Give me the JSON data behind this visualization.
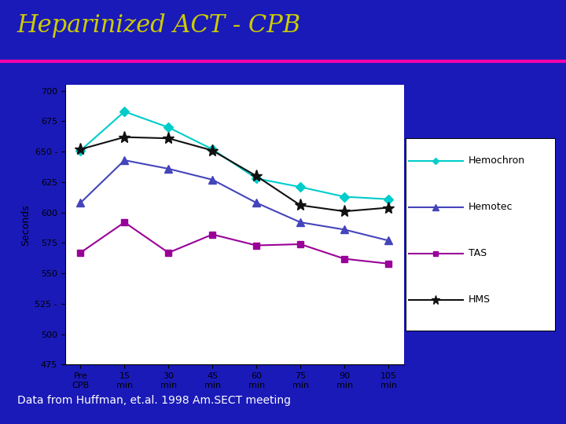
{
  "title": "Heparinized ACT - CPB",
  "subtitle": "Data from Huffman, et.al. 1998 Am.SECT meeting",
  "background_color": "#1a1ab8",
  "plot_bg_color": "#ffffff",
  "ylabel": "Seconds",
  "x_labels": [
    "Pre\nCPB",
    "15\nmin",
    "30\nmin",
    "45\nmin",
    "60\nmin",
    "75\nmin",
    "90\nmin",
    "105\nmin"
  ],
  "x_values": [
    0,
    1,
    2,
    3,
    4,
    5,
    6,
    7
  ],
  "series_order": [
    "Hemochron",
    "Hemotec",
    "TAS",
    "HMS"
  ],
  "series": {
    "Hemochron": {
      "values": [
        651,
        683,
        670,
        652,
        628,
        621,
        613,
        611
      ],
      "color": "#00cccc",
      "marker": "D",
      "markersize": 6,
      "linewidth": 1.5
    },
    "Hemotec": {
      "values": [
        608,
        643,
        636,
        627,
        608,
        592,
        586,
        577
      ],
      "color": "#4444bb",
      "marker": "^",
      "markersize": 7,
      "linewidth": 1.5
    },
    "TAS": {
      "values": [
        567,
        592,
        567,
        582,
        573,
        574,
        562,
        558
      ],
      "color": "#990099",
      "marker": "s",
      "markersize": 6,
      "linewidth": 1.5
    },
    "HMS": {
      "values": [
        652,
        662,
        661,
        651,
        630,
        606,
        601,
        604
      ],
      "color": "#111111",
      "marker": "*",
      "markersize": 11,
      "linewidth": 1.5
    }
  },
  "ylim": [
    475,
    705
  ],
  "yticks": [
    475,
    500,
    525,
    550,
    575,
    600,
    625,
    650,
    675,
    700
  ],
  "ytick_special_dash": [
    525,
    650
  ],
  "title_color": "#cccc00",
  "title_fontsize": 22,
  "axis_label_fontsize": 9,
  "tick_fontsize": 8,
  "legend_fontsize": 9,
  "divider_color": "#ff00aa",
  "subtitle_color": "#ffffff",
  "subtitle_fontsize": 10
}
